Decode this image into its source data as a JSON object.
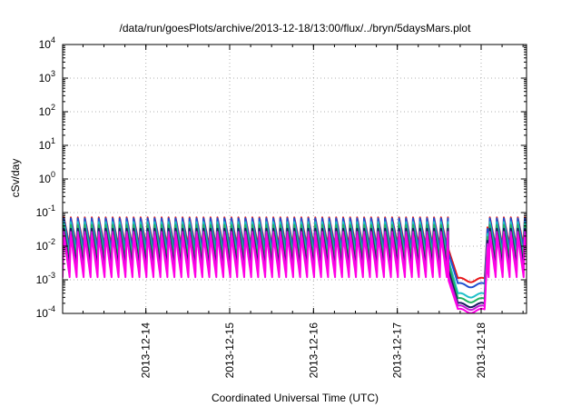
{
  "chart_data": {
    "type": "line",
    "title": "/data/run/goesPlots/archive/2013-12-18/13:00/flux/../bryn/5daysMars.plot",
    "xlabel": "Coordinated Universal Time (UTC)",
    "ylabel": "cSv/day",
    "y_scale": "log",
    "ylim": [
      0.0001,
      10000
    ],
    "xlim": [
      "2013-12-13 00:10",
      "2013-12-18 13:00"
    ],
    "grid": true,
    "y_ticks": [
      {
        "base": "10",
        "exp": "-4"
      },
      {
        "base": "10",
        "exp": "-3"
      },
      {
        "base": "10",
        "exp": "-2"
      },
      {
        "base": "10",
        "exp": "-1"
      },
      {
        "base": "10",
        "exp": "0"
      },
      {
        "base": "10",
        "exp": "1"
      },
      {
        "base": "10",
        "exp": "2"
      },
      {
        "base": "10",
        "exp": "3"
      },
      {
        "base": "10",
        "exp": "4"
      }
    ],
    "x_ticks": [
      {
        "label": "2013-12-14",
        "value": "2013-12-14 00:00"
      },
      {
        "label": "2013-12-15",
        "value": "2013-12-15 00:00"
      },
      {
        "label": "2013-12-16",
        "value": "2013-12-16 00:00"
      },
      {
        "label": "2013-12-17",
        "value": "2013-12-17 00:00"
      },
      {
        "label": "2013-12-18",
        "value": "2013-12-18 00:00"
      }
    ],
    "oscillation_period_hours": 2.0,
    "dropout": {
      "start": "2013-12-17 14:30",
      "end": "2013-12-18 02:00"
    },
    "series": [
      {
        "color": "#e8171b",
        "peak": 0.075,
        "trough": 0.01,
        "dropout_level": 0.001
      },
      {
        "color": "#2050d0",
        "peak": 0.07,
        "trough": 0.008,
        "dropout_level": 0.0007
      },
      {
        "color": "#1ec0c8",
        "peak": 0.055,
        "trough": 0.005,
        "dropout_level": 0.00035
      },
      {
        "color": "#22b060",
        "peak": 0.045,
        "trough": 0.004,
        "dropout_level": 0.00025
      },
      {
        "color": "#181860",
        "peak": 0.035,
        "trough": 0.0025,
        "dropout_level": 0.00018
      },
      {
        "color": "#c81ad8",
        "peak": 0.028,
        "trough": 0.0017,
        "dropout_level": 0.00015
      },
      {
        "color": "#ff00e6",
        "peak": 0.022,
        "trough": 0.0012,
        "dropout_level": 0.00012
      }
    ]
  }
}
